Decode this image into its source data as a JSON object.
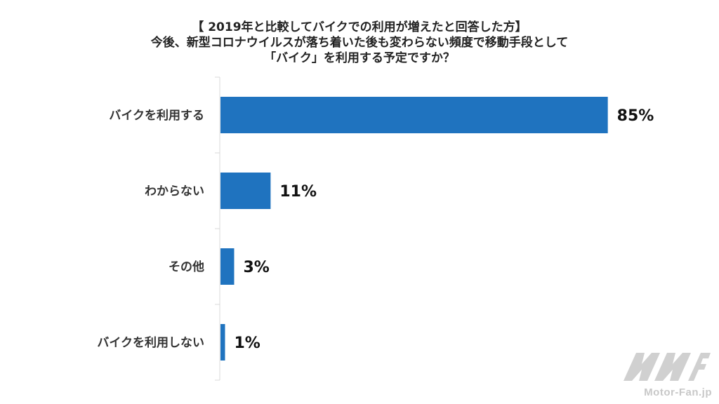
{
  "chart_data": {
    "type": "bar",
    "orientation": "horizontal",
    "title_lines": [
      "【 2019年と比較してバイクでの利用が増えたと回答した方】",
      "今後、新型コロナウイルスが落ち着いた後も変わらない頻度で移動手段として",
      "「バイク」を利用する予定ですか？"
    ],
    "categories": [
      "バイクを利用する",
      "わからない",
      "その他",
      "バイクを利用しない"
    ],
    "values": [
      85,
      11,
      3,
      1
    ],
    "value_labels": [
      "85%",
      "11%",
      "3%",
      "1%"
    ],
    "xlim": [
      0,
      100
    ],
    "grid": false,
    "bar_color": "#1f73bf"
  },
  "watermark": {
    "logo_text": "MF",
    "site": "Motor-Fan.jp",
    "color": "#d0d0d0"
  }
}
